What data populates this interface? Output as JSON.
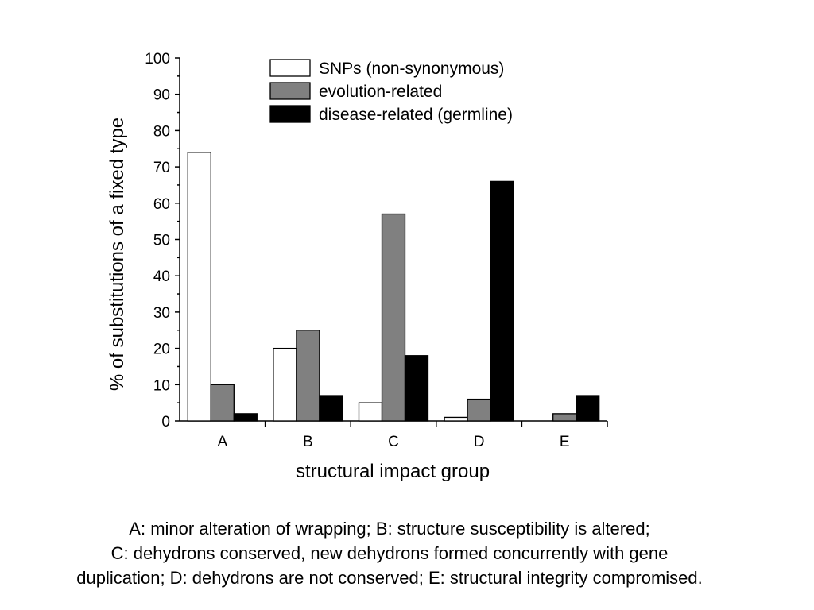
{
  "chart_data": {
    "type": "bar",
    "categories": [
      "A",
      "B",
      "C",
      "D",
      "E"
    ],
    "series": [
      {
        "name": "SNPs (non-synonymous)",
        "values": [
          74,
          20,
          5,
          1,
          0
        ],
        "color": "#ffffff"
      },
      {
        "name": "evolution-related",
        "values": [
          10,
          25,
          57,
          6,
          2
        ],
        "color": "#808080"
      },
      {
        "name": "disease-related (germline)",
        "values": [
          2,
          7,
          18,
          66,
          7
        ],
        "color": "#000000"
      }
    ],
    "xlabel": "structural impact group",
    "ylabel": "% of substitutions of a fixed type",
    "ylim": [
      0,
      100
    ],
    "yticks": [
      0,
      10,
      20,
      30,
      40,
      50,
      60,
      70,
      80,
      90,
      100
    ],
    "grid": false,
    "legend_position": "top-right"
  },
  "caption": {
    "line1": "A: minor alteration of wrapping; B: structure susceptibility is altered;",
    "line2": "C: dehydrons conserved, new dehydrons formed concurrently with gene",
    "line3": "duplication; D: dehydrons are not conserved; E: structural integrity compromised."
  }
}
